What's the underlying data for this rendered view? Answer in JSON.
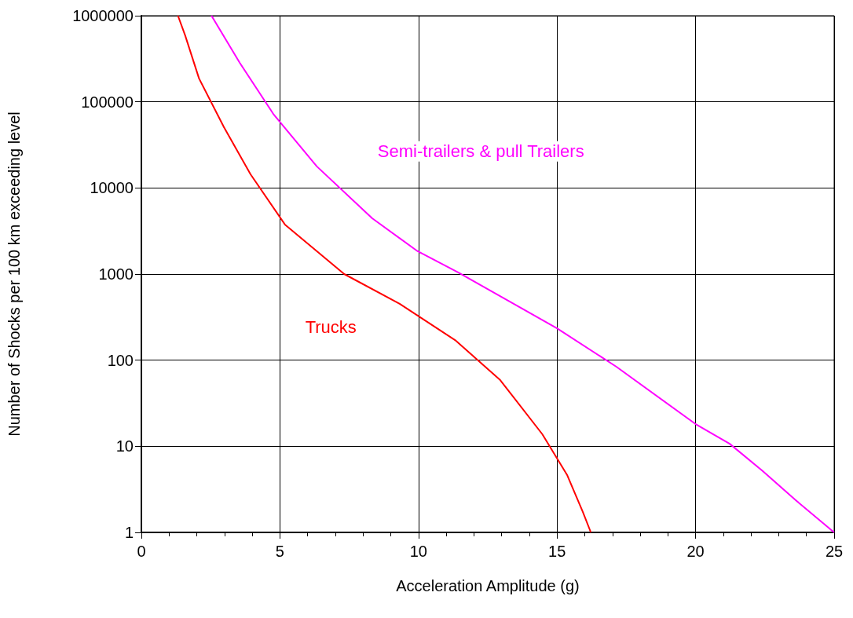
{
  "chart_data": {
    "type": "line",
    "xlabel": "Acceleration Amplitude (g)",
    "ylabel": "Number of Shocks per 100 km exceeding level",
    "x": [
      1.32,
      1.58,
      2.08,
      2.98,
      3.94,
      5.18,
      7.32,
      9.32,
      11.32,
      12.95,
      14.47,
      15.37,
      15.93,
      16.22
    ],
    "series": [
      {
        "name": "Trucks",
        "color": "#ff0000",
        "values": [
          1000000,
          590000,
          187000,
          50700,
          14400,
          3760,
          1000,
          451,
          171,
          58.7,
          13.8,
          4.6,
          1.73,
          1
        ]
      },
      {
        "name": "Semi-trailers & pull Trailers",
        "color": "#ff00ff",
        "x": [
          2.53,
          3.55,
          4.76,
          6.33,
          8.33,
          9.97,
          11.43,
          15.0,
          17.14,
          19.99,
          21.23,
          22.41,
          23.59,
          25
        ],
        "values": [
          1000000,
          284000,
          72400,
          17800,
          4440,
          1840,
          1046,
          234,
          84,
          18.2,
          10.7,
          5.2,
          2.4,
          1
        ]
      }
    ],
    "xlim": [
      0,
      25
    ],
    "xticks": [
      0,
      5,
      10,
      15,
      20,
      25
    ],
    "ylim": [
      1,
      1000000
    ],
    "yticks": [
      1,
      10,
      100,
      1000,
      10000,
      100000,
      1000000
    ],
    "log": "y",
    "grid": true,
    "marker": "none",
    "line_style": "solid"
  }
}
